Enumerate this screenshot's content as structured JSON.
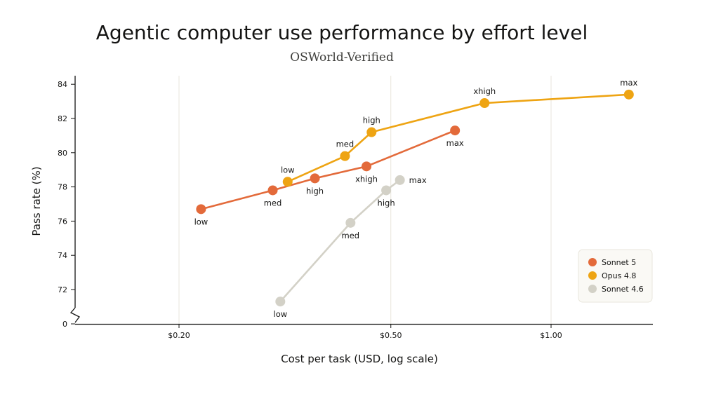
{
  "chart_data": {
    "type": "line",
    "title": "Agentic computer use performance by effort level",
    "subtitle": "OSWorld-Verified",
    "xlabel": "Cost per task (USD, log scale)",
    "ylabel": "Pass rate (%)",
    "x_scale": "log",
    "xlim": [
      0.13,
      1.6
    ],
    "x_ticks": [
      0.2,
      0.5,
      1.0
    ],
    "x_tick_labels": [
      "$0.20",
      "$0.50",
      "$1.00"
    ],
    "y_axis_break": true,
    "ylim": [
      70,
      84.5
    ],
    "y_ticks": [
      0,
      72,
      74,
      76,
      78,
      80,
      82,
      84
    ],
    "y_tick_labels": [
      "0",
      "72",
      "74",
      "76",
      "78",
      "80",
      "82",
      "84"
    ],
    "grid": "vertical",
    "legend_position": "bottom-right",
    "series": [
      {
        "name": "Sonnet 5",
        "color": "#E36A3A",
        "points": [
          {
            "x": 0.22,
            "y": 76.7,
            "label": "low",
            "label_pos": "below"
          },
          {
            "x": 0.3,
            "y": 77.8,
            "label": "med",
            "label_pos": "below"
          },
          {
            "x": 0.36,
            "y": 78.5,
            "label": "high",
            "label_pos": "below"
          },
          {
            "x": 0.45,
            "y": 79.2,
            "label": "xhigh",
            "label_pos": "below"
          },
          {
            "x": 0.66,
            "y": 81.3,
            "label": "max",
            "label_pos": "below"
          }
        ]
      },
      {
        "name": "Opus 4.8",
        "color": "#EEA413",
        "points": [
          {
            "x": 0.32,
            "y": 78.3,
            "label": "low",
            "label_pos": "above"
          },
          {
            "x": 0.41,
            "y": 79.8,
            "label": "med",
            "label_pos": "above"
          },
          {
            "x": 0.46,
            "y": 81.2,
            "label": "high",
            "label_pos": "above"
          },
          {
            "x": 0.75,
            "y": 82.9,
            "label": "xhigh",
            "label_pos": "above"
          },
          {
            "x": 1.4,
            "y": 83.4,
            "label": "max",
            "label_pos": "above"
          }
        ]
      },
      {
        "name": "Sonnet 4.6",
        "color": "#D3D1C7",
        "points": [
          {
            "x": 0.31,
            "y": 71.3,
            "label": "low",
            "label_pos": "below"
          },
          {
            "x": 0.42,
            "y": 75.9,
            "label": "med",
            "label_pos": "below"
          },
          {
            "x": 0.49,
            "y": 77.8,
            "label": "high",
            "label_pos": "below"
          },
          {
            "x": 0.52,
            "y": 78.4,
            "label": "max",
            "label_pos": "right"
          }
        ]
      }
    ]
  }
}
